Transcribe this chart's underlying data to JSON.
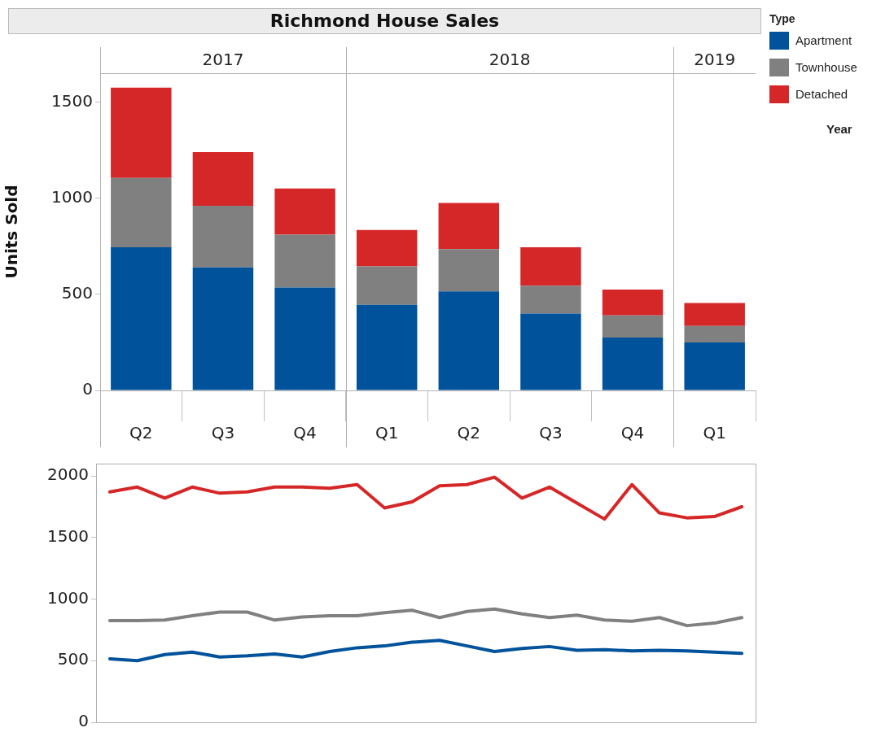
{
  "chart_data": [
    {
      "type": "bar",
      "title": "Richmond House Sales",
      "ylabel": "Units Sold",
      "stacked": true,
      "categories": [
        "Q2",
        "Q3",
        "Q4",
        "Q1",
        "Q2",
        "Q3",
        "Q4",
        "Q1"
      ],
      "series": [
        {
          "name": "Apartment",
          "color": "#00529b",
          "values": [
            745,
            640,
            535,
            445,
            515,
            400,
            275,
            250
          ]
        },
        {
          "name": "Townhouse",
          "color": "#808080",
          "values": [
            360,
            320,
            275,
            200,
            220,
            145,
            115,
            85
          ]
        },
        {
          "name": "Detached",
          "color": "#d62728",
          "values": [
            470,
            280,
            240,
            190,
            240,
            200,
            135,
            120
          ]
        }
      ],
      "ylim": [
        0,
        1650
      ],
      "yticks": [
        0,
        500,
        1000,
        1500
      ],
      "grid": false,
      "legend": "right",
      "legend_title": "Type",
      "annotations": [
        "2017",
        "2018",
        "2019",
        "Year"
      ]
    },
    {
      "type": "line",
      "categories": [
        null,
        null,
        null,
        null,
        null,
        null,
        null,
        null,
        null,
        null,
        null,
        null,
        null,
        null,
        null,
        null,
        null,
        null,
        null,
        null,
        null,
        null,
        null,
        null
      ],
      "series": [
        {
          "color": "#d62728",
          "values": [
            1870,
            1910,
            1820,
            1910,
            1860,
            1870,
            1910,
            1910,
            1900,
            1930,
            1740,
            1790,
            1920,
            1930,
            1990,
            1820,
            1910,
            1780,
            1650,
            1930,
            1700,
            1660,
            1670,
            1750
          ]
        },
        {
          "color": "#808080",
          "values": [
            825,
            825,
            830,
            865,
            895,
            895,
            830,
            855,
            865,
            865,
            890,
            910,
            850,
            900,
            920,
            880,
            850,
            870,
            830,
            820,
            850,
            785,
            805,
            850
          ]
        },
        {
          "color": "#00529b",
          "values": [
            515,
            500,
            550,
            570,
            530,
            540,
            555,
            530,
            575,
            605,
            620,
            650,
            665,
            620,
            575,
            600,
            615,
            585,
            590,
            580,
            585,
            580,
            570,
            560
          ]
        }
      ],
      "ylim": [
        0,
        2100
      ],
      "yticks": [
        0,
        500,
        1000,
        1500,
        2000
      ],
      "grid": false,
      "tick_labels": "y",
      "marker": "none",
      "line_style": "solid"
    }
  ]
}
